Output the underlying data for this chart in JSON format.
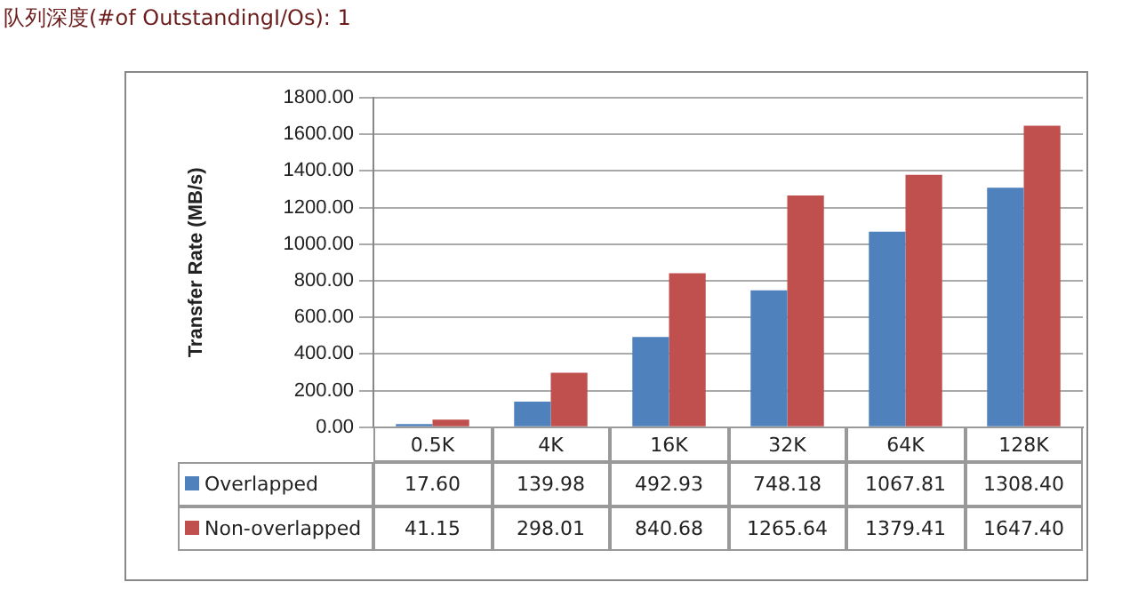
{
  "chart_data": {
    "type": "bar",
    "title": "队列深度(#of OutstandingI/Os): 1",
    "ylabel": "Transfer Rate (MB/s)",
    "categories": [
      "0.5K",
      "4K",
      "16K",
      "32K",
      "64K",
      "128K"
    ],
    "series": [
      {
        "name": "Overlapped",
        "color": "#4f81bd",
        "values": [
          17.6,
          139.98,
          492.93,
          748.18,
          1067.81,
          1308.4
        ],
        "value_labels": [
          "17.60",
          "139.98",
          "492.93",
          "748.18",
          "1067.81",
          "1308.40"
        ]
      },
      {
        "name": "Non-overlapped",
        "color": "#c0504d",
        "values": [
          41.15,
          298.01,
          840.68,
          1265.64,
          1379.41,
          1647.4
        ],
        "value_labels": [
          "41.15",
          "298.01",
          "840.68",
          "1265.64",
          "1379.41",
          "1647.40"
        ]
      }
    ],
    "ylim": [
      0,
      1800
    ],
    "yticks": [
      {
        "value": 0,
        "label": "0.00"
      },
      {
        "value": 200,
        "label": "200.00"
      },
      {
        "value": 400,
        "label": "400.00"
      },
      {
        "value": 600,
        "label": "600.00"
      },
      {
        "value": 800,
        "label": "800.00"
      },
      {
        "value": 1000,
        "label": "1000.00"
      },
      {
        "value": 1200,
        "label": "1200.00"
      },
      {
        "value": 1400,
        "label": "1400.00"
      },
      {
        "value": 1600,
        "label": "1600.00"
      },
      {
        "value": 1800,
        "label": "1800.00"
      }
    ],
    "grid": "y",
    "legend": "bottom"
  }
}
